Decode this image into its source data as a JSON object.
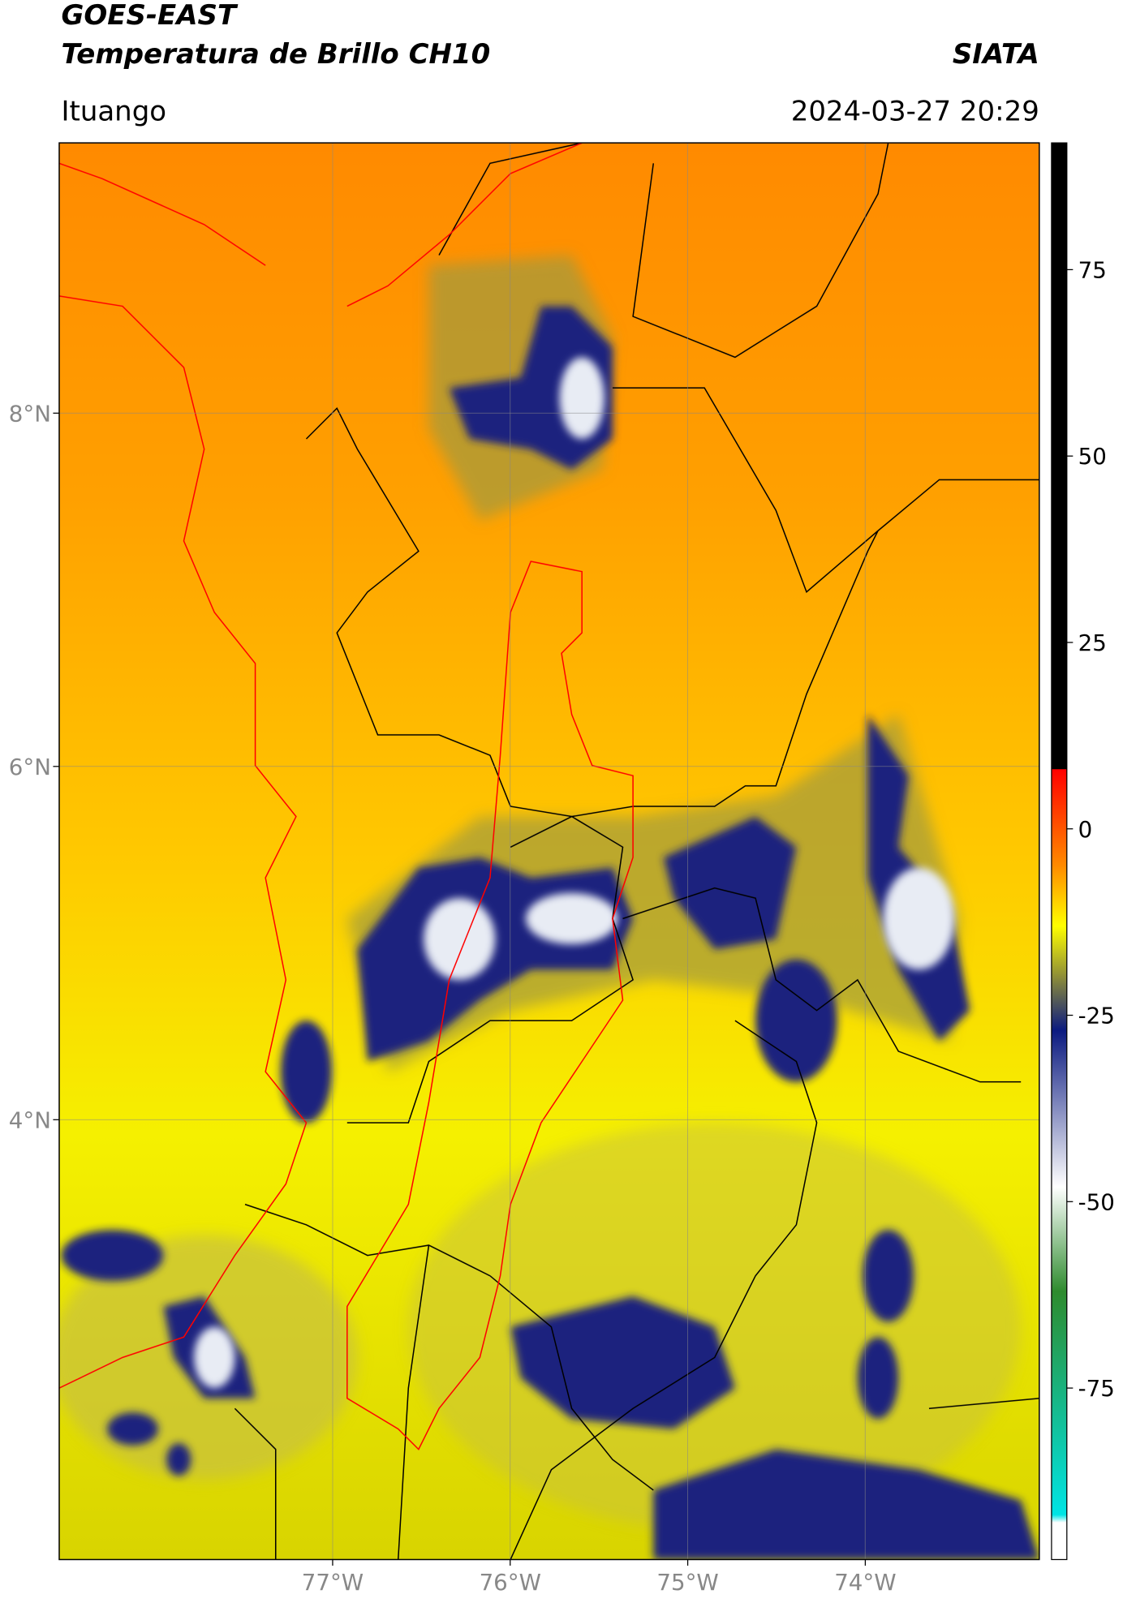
{
  "header": {
    "title": "GOES-EAST",
    "subtitle": "Temperatura de Brillo CH10",
    "source": "SIATA",
    "location": "Ituango",
    "datetime": "2024-03-27 20:29"
  },
  "map": {
    "lonlim": [
      -78.54,
      -73.02
    ],
    "latlim": [
      1.51,
      9.53
    ],
    "grid": true,
    "lon_ticks": [
      {
        "value": -77,
        "label": "77°W"
      },
      {
        "value": -76,
        "label": "76°W"
      },
      {
        "value": -75,
        "label": "75°W"
      },
      {
        "value": -74,
        "label": "74°W"
      }
    ],
    "lat_ticks": [
      {
        "value": 8,
        "label": "8°N"
      },
      {
        "value": 6,
        "label": "6°N"
      },
      {
        "value": 4,
        "label": "4°N"
      }
    ]
  },
  "colorbar": {
    "lim": [
      -98,
      92
    ],
    "ticks": [
      75,
      50,
      25,
      0,
      -25,
      -50,
      -75
    ],
    "stops": [
      {
        "value": 92,
        "color": "#000000"
      },
      {
        "value": 8,
        "color": "#000000"
      },
      {
        "value": 8,
        "color": "#ff0000"
      },
      {
        "value": -5,
        "color": "#ff8c00"
      },
      {
        "value": -13,
        "color": "#ffff00"
      },
      {
        "value": -20,
        "color": "#8a8a3a"
      },
      {
        "value": -27,
        "color": "#0b1a80"
      },
      {
        "value": -48,
        "color": "#ffffff"
      },
      {
        "value": -62,
        "color": "#2e8b2e"
      },
      {
        "value": -92,
        "color": "#00e5e5"
      },
      {
        "value": -93,
        "color": "#ffffff"
      },
      {
        "value": -98,
        "color": "#ffffff"
      }
    ]
  }
}
